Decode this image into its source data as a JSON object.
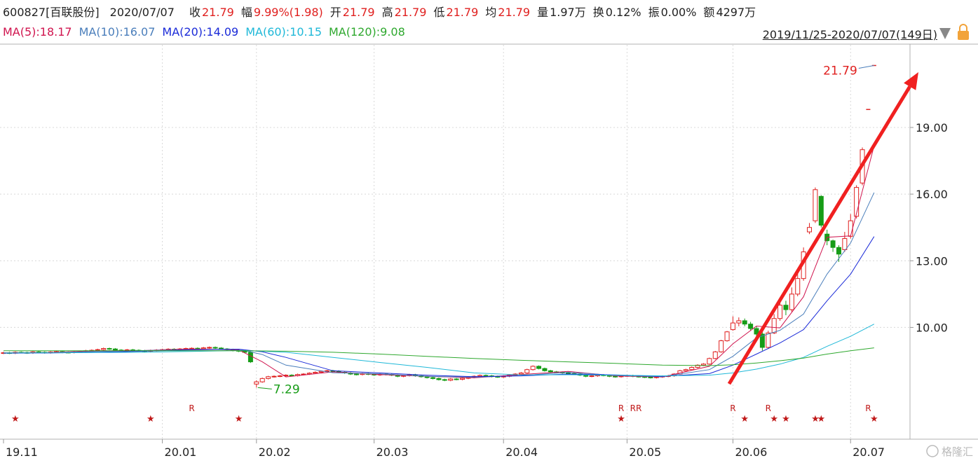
{
  "chart_data": {
    "type": "candlestick",
    "stock": "600827[百联股份]",
    "date": "2020/07/07",
    "quote_fields": [
      {
        "label": "收",
        "text": "21.79",
        "color": "#e0201f"
      },
      {
        "label": "幅",
        "text": "9.99%(1.98)",
        "color": "#e0201f"
      },
      {
        "label": "开",
        "text": "21.79",
        "color": "#e0201f"
      },
      {
        "label": "高",
        "text": "21.79",
        "color": "#e0201f"
      },
      {
        "label": "低",
        "text": "21.79",
        "color": "#e0201f"
      },
      {
        "label": "均",
        "text": "21.79",
        "color": "#e0201f"
      },
      {
        "label": "量",
        "text": "1.97万",
        "color": "#222222"
      },
      {
        "label": "换",
        "text": "0.12%",
        "color": "#222222"
      },
      {
        "label": "振",
        "text": "0.00%",
        "color": "#222222"
      },
      {
        "label": "额",
        "text": "4297万",
        "color": "#222222"
      }
    ],
    "date_range": "2019/11/25-2020/07/07(149日)",
    "watermark": "格隆汇",
    "grid": true,
    "up_color": "#e0201f",
    "down_color": "#179c17",
    "xlim": [
      0,
      154.1
    ],
    "ylim": [
      5,
      22.72
    ],
    "yticks": [
      {
        "value": 10,
        "label": "10.00"
      },
      {
        "value": 13,
        "label": "13.00"
      },
      {
        "value": 16,
        "label": "16.00"
      },
      {
        "value": 19,
        "label": "19.00"
      }
    ],
    "xticks": [
      {
        "value": 0,
        "label": "19.11"
      },
      {
        "value": 27,
        "label": "20.01"
      },
      {
        "value": 43,
        "label": "20.02"
      },
      {
        "value": 63,
        "label": "20.03"
      },
      {
        "value": 85,
        "label": "20.04"
      },
      {
        "value": 106,
        "label": "20.05"
      },
      {
        "value": 124,
        "label": "20.06"
      },
      {
        "value": 144,
        "label": "20.07"
      }
    ],
    "open": [
      8.84,
      8.86,
      8.84,
      8.88,
      8.87,
      8.85,
      8.9,
      8.88,
      8.86,
      8.89,
      8.91,
      8.88,
      8.87,
      8.9,
      8.92,
      8.95,
      8.97,
      9.0,
      9.05,
      9.03,
      8.98,
      8.96,
      8.99,
      8.97,
      8.95,
      8.93,
      8.96,
      8.98,
      9.0,
      9.02,
      8.99,
      9.03,
      9.05,
      9.06,
      9.04,
      9.08,
      9.1,
      9.07,
      9.03,
      9.0,
      8.96,
      8.93,
      8.88,
      7.45,
      7.55,
      7.7,
      7.78,
      7.8,
      7.82,
      7.85,
      7.83,
      7.88,
      7.9,
      7.94,
      7.98,
      8.02,
      8.05,
      8.03,
      7.98,
      7.95,
      7.9,
      7.88,
      7.92,
      7.89,
      7.86,
      7.9,
      7.88,
      7.85,
      7.8,
      7.83,
      7.87,
      7.82,
      7.78,
      7.74,
      7.7,
      7.65,
      7.62,
      7.68,
      7.66,
      7.71,
      7.75,
      7.8,
      7.84,
      7.82,
      7.79,
      7.77,
      7.8,
      7.85,
      7.9,
      7.95,
      8.1,
      8.25,
      8.15,
      8.05,
      8.0,
      7.98,
      7.95,
      7.92,
      7.9,
      7.85,
      7.8,
      7.82,
      7.86,
      7.84,
      7.8,
      7.78,
      7.81,
      7.83,
      7.8,
      7.78,
      7.76,
      7.74,
      7.77,
      7.8,
      7.82,
      7.9,
      8.05,
      8.1,
      8.2,
      8.3,
      8.35,
      8.6,
      8.9,
      9.4,
      9.9,
      10.2,
      10.3,
      10.15,
      9.95,
      9.7,
      9.1,
      9.75,
      10.4,
      11.0,
      10.8,
      11.5,
      12.2,
      14.3,
      14.8,
      15.9,
      14.2,
      13.9,
      13.6,
      13.5,
      14.1,
      15.0,
      16.5,
      19.81,
      21.79
    ],
    "high": [
      8.9,
      8.9,
      8.92,
      8.92,
      8.91,
      8.94,
      8.94,
      8.92,
      8.93,
      8.95,
      8.95,
      8.92,
      8.94,
      8.96,
      8.99,
      9.01,
      9.04,
      9.09,
      9.09,
      9.07,
      9.02,
      9.03,
      9.03,
      9.01,
      8.99,
      9.0,
      9.02,
      9.04,
      9.06,
      9.06,
      9.07,
      9.09,
      9.1,
      9.1,
      9.12,
      9.14,
      9.14,
      9.11,
      9.07,
      9.04,
      9.0,
      8.97,
      8.92,
      7.62,
      7.74,
      7.82,
      7.84,
      7.86,
      7.89,
      7.89,
      7.92,
      7.94,
      7.98,
      8.02,
      8.06,
      8.09,
      8.09,
      8.07,
      8.02,
      7.99,
      7.94,
      7.96,
      7.96,
      7.93,
      7.94,
      7.94,
      7.92,
      7.89,
      7.87,
      7.91,
      7.91,
      7.86,
      7.82,
      7.78,
      7.74,
      7.69,
      7.72,
      7.72,
      7.75,
      7.79,
      7.84,
      7.88,
      7.88,
      7.86,
      7.83,
      7.84,
      7.89,
      7.94,
      7.99,
      8.14,
      8.29,
      8.29,
      8.19,
      8.09,
      8.04,
      8.02,
      7.99,
      7.96,
      7.94,
      7.89,
      7.86,
      7.9,
      7.9,
      7.88,
      7.84,
      7.85,
      7.87,
      7.87,
      7.84,
      7.82,
      7.8,
      7.81,
      7.84,
      7.86,
      7.94,
      8.09,
      8.14,
      8.24,
      8.34,
      8.39,
      8.64,
      8.94,
      9.44,
      9.84,
      10.5,
      10.45,
      10.4,
      10.25,
      10.05,
      9.8,
      9.85,
      10.6,
      11.3,
      11.2,
      11.8,
      12.5,
      13.6,
      14.7,
      16.3,
      15.95,
      14.4,
      13.95,
      13.7,
      14.3,
      15.1,
      16.4,
      18.1,
      19.81,
      21.79
    ],
    "low": [
      8.8,
      8.8,
      8.8,
      8.83,
      8.81,
      8.81,
      8.84,
      8.82,
      8.82,
      8.85,
      8.84,
      8.83,
      8.83,
      8.86,
      8.88,
      8.91,
      8.93,
      8.96,
      8.99,
      8.94,
      8.92,
      8.92,
      8.93,
      8.91,
      8.89,
      8.89,
      8.92,
      8.94,
      8.96,
      8.95,
      8.95,
      8.99,
      9.01,
      9.0,
      9.0,
      9.04,
      9.03,
      8.99,
      8.96,
      8.92,
      8.89,
      8.84,
      8.4,
      7.29,
      7.51,
      7.66,
      7.74,
      7.76,
      7.78,
      7.79,
      7.79,
      7.84,
      7.86,
      7.9,
      7.94,
      7.98,
      7.99,
      7.94,
      7.91,
      7.86,
      7.84,
      7.84,
      7.85,
      7.82,
      7.82,
      7.84,
      7.81,
      7.76,
      7.76,
      7.79,
      7.78,
      7.74,
      7.7,
      7.66,
      7.61,
      7.58,
      7.58,
      7.62,
      7.62,
      7.67,
      7.71,
      7.76,
      7.78,
      7.75,
      7.73,
      7.73,
      7.76,
      7.81,
      7.86,
      7.91,
      8.06,
      8.11,
      8.01,
      7.96,
      7.94,
      7.91,
      7.88,
      7.86,
      7.81,
      7.76,
      7.76,
      7.78,
      7.8,
      7.76,
      7.74,
      7.74,
      7.77,
      7.76,
      7.74,
      7.72,
      7.7,
      7.7,
      7.73,
      7.76,
      7.78,
      7.86,
      8.01,
      8.06,
      8.16,
      8.26,
      8.31,
      8.56,
      8.86,
      9.36,
      9.85,
      10.05,
      10.05,
      9.85,
      9.55,
      8.95,
      9.05,
      9.7,
      10.3,
      10.55,
      10.7,
      11.4,
      12.1,
      14.2,
      14.7,
      14.5,
      13.7,
      13.4,
      12.95,
      13.4,
      14.0,
      14.9,
      16.4,
      19.81,
      21.79
    ],
    "close": [
      8.86,
      8.84,
      8.88,
      8.87,
      8.85,
      8.9,
      8.88,
      8.86,
      8.89,
      8.91,
      8.88,
      8.87,
      8.9,
      8.92,
      8.95,
      8.97,
      9.0,
      9.05,
      9.03,
      8.98,
      8.96,
      8.99,
      8.97,
      8.95,
      8.93,
      8.96,
      8.98,
      9.0,
      9.02,
      8.99,
      9.03,
      9.05,
      9.06,
      9.04,
      9.08,
      9.1,
      9.07,
      9.03,
      9.0,
      8.96,
      8.93,
      8.88,
      8.45,
      7.55,
      7.7,
      7.78,
      7.8,
      7.82,
      7.85,
      7.83,
      7.88,
      7.9,
      7.94,
      7.98,
      8.02,
      8.05,
      8.03,
      7.98,
      7.95,
      7.9,
      7.88,
      7.92,
      7.89,
      7.86,
      7.9,
      7.88,
      7.85,
      7.8,
      7.83,
      7.87,
      7.82,
      7.78,
      7.74,
      7.7,
      7.65,
      7.62,
      7.68,
      7.66,
      7.71,
      7.75,
      7.8,
      7.84,
      7.82,
      7.79,
      7.77,
      7.8,
      7.85,
      7.9,
      7.95,
      8.1,
      8.25,
      8.15,
      8.05,
      8.0,
      7.98,
      7.95,
      7.92,
      7.9,
      7.85,
      7.8,
      7.82,
      7.86,
      7.84,
      7.8,
      7.78,
      7.81,
      7.83,
      7.8,
      7.78,
      7.76,
      7.74,
      7.77,
      7.8,
      7.82,
      7.9,
      8.05,
      8.1,
      8.2,
      8.3,
      8.35,
      8.6,
      8.9,
      9.4,
      9.8,
      10.2,
      10.3,
      10.15,
      9.95,
      9.7,
      9.1,
      9.75,
      10.4,
      11.0,
      10.8,
      11.5,
      12.2,
      13.4,
      14.5,
      16.2,
      14.6,
      13.9,
      13.6,
      13.3,
      14.0,
      14.8,
      16.3,
      18.0,
      19.81,
      21.79
    ],
    "ma_x": [
      0,
      8,
      16,
      24,
      32,
      40,
      44,
      48,
      56,
      64,
      72,
      80,
      88,
      96,
      104,
      112,
      120,
      124,
      128,
      132,
      136,
      140,
      144,
      148
    ],
    "ma_series": [
      {
        "name": "MA(5):18.17",
        "color": "#d0144e",
        "values": [
          8.86,
          8.87,
          8.95,
          8.96,
          9.03,
          8.99,
          8.45,
          7.77,
          8.0,
          7.88,
          7.8,
          7.73,
          7.88,
          8.02,
          7.82,
          7.77,
          8.25,
          9.26,
          10.06,
          9.98,
          11.38,
          14.06,
          14.12,
          18.17
        ]
      },
      {
        "name": "MA(10):16.07",
        "color": "#4a7ebb",
        "values": [
          8.85,
          8.86,
          8.92,
          8.96,
          9.0,
          9.02,
          8.78,
          8.3,
          7.96,
          7.91,
          7.8,
          7.76,
          7.83,
          7.98,
          7.84,
          7.78,
          8.1,
          8.7,
          9.53,
          9.87,
          10.6,
          12.4,
          13.8,
          16.07
        ]
      },
      {
        "name": "MA(20):14.09",
        "color": "#1a2ad8",
        "values": [
          8.84,
          8.85,
          8.88,
          8.93,
          8.99,
          9.02,
          8.9,
          8.65,
          8.05,
          7.95,
          7.85,
          7.78,
          7.82,
          7.9,
          7.86,
          7.8,
          7.92,
          8.3,
          8.8,
          9.3,
          9.9,
          11.2,
          12.4,
          14.09
        ]
      },
      {
        "name": "MA(60):10.15",
        "color": "#1fb8d8",
        "values": [
          8.85,
          8.86,
          8.87,
          8.88,
          8.92,
          8.96,
          8.93,
          8.88,
          8.65,
          8.42,
          8.2,
          7.95,
          7.86,
          7.87,
          7.85,
          7.82,
          7.85,
          7.95,
          8.12,
          8.35,
          8.65,
          9.15,
          9.6,
          10.15
        ]
      },
      {
        "name": "MA(120):9.08",
        "color": "#2ea82e",
        "values": [
          8.95,
          8.95,
          8.95,
          8.95,
          8.95,
          8.95,
          8.94,
          8.93,
          8.88,
          8.8,
          8.7,
          8.6,
          8.52,
          8.45,
          8.38,
          8.3,
          8.28,
          8.32,
          8.4,
          8.5,
          8.62,
          8.8,
          8.95,
          9.08
        ]
      }
    ],
    "annotations": [
      {
        "x": 43,
        "value": 7.29,
        "color": "#179c17"
      },
      {
        "x": 148,
        "value": 21.79,
        "color": "#e0201f"
      }
    ],
    "r_markers": {
      "label": "R",
      "x": [
        32,
        105,
        107,
        108,
        124,
        130,
        147
      ]
    },
    "star_markers": {
      "label": "★",
      "x": [
        2,
        25,
        40,
        105,
        126,
        131,
        133,
        138,
        139,
        148
      ]
    }
  }
}
